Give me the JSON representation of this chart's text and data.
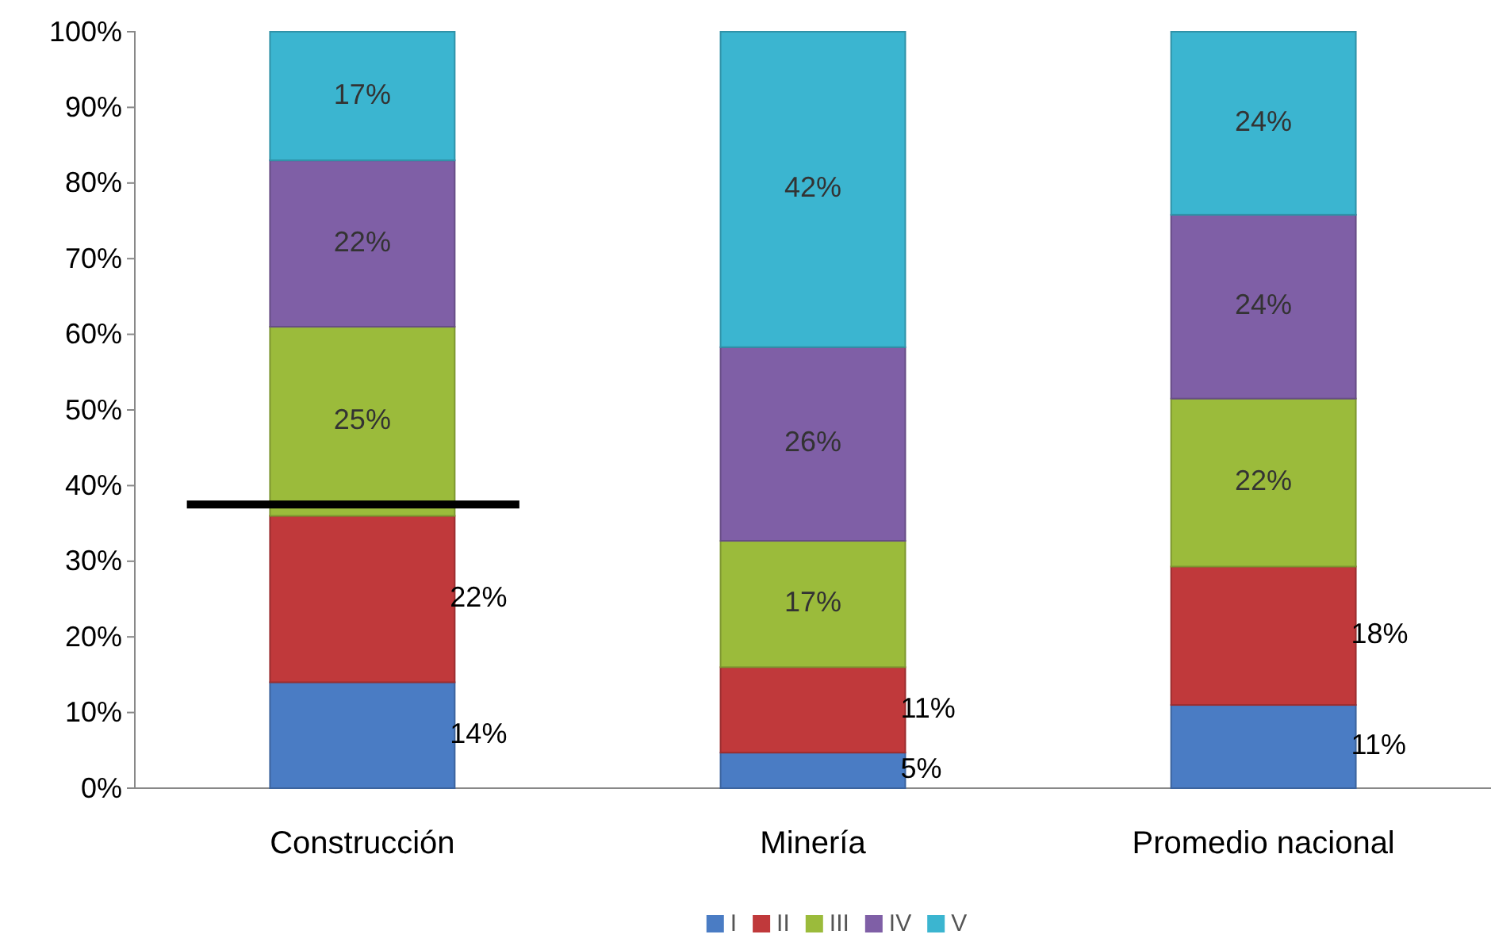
{
  "chart_data": {
    "type": "bar",
    "stacked": true,
    "categories": [
      "Construcción",
      "Minería",
      "Promedio nacional"
    ],
    "series": [
      {
        "name": "I",
        "color": "#4a7cc4",
        "values": [
          14,
          4.7,
          11
        ],
        "value_labels": [
          "14%",
          "5%",
          "11%"
        ]
      },
      {
        "name": "II",
        "color": "#c0393b",
        "values": [
          22,
          11.3,
          18.3
        ],
        "value_labels": [
          "22%",
          "11%",
          "18%"
        ]
      },
      {
        "name": "III",
        "color": "#9bbb3b",
        "values": [
          25,
          16.7,
          22.2
        ],
        "value_labels": [
          "25%",
          "17%",
          "22%"
        ]
      },
      {
        "name": "IV",
        "color": "#7f5fa6",
        "values": [
          22,
          25.6,
          24.3
        ],
        "value_labels": [
          "22%",
          "26%",
          "24%"
        ]
      },
      {
        "name": "V",
        "color": "#3bb5d0",
        "values": [
          17,
          41.7,
          24.2
        ],
        "value_labels": [
          "17%",
          "42%",
          "24%"
        ]
      }
    ],
    "ylim": [
      0,
      100
    ],
    "yticks": [
      {
        "value": 0,
        "label": "0%"
      },
      {
        "value": 10,
        "label": "10%"
      },
      {
        "value": 20,
        "label": "20%"
      },
      {
        "value": 30,
        "label": "30%"
      },
      {
        "value": 40,
        "label": "40%"
      },
      {
        "value": 50,
        "label": "50%"
      },
      {
        "value": 60,
        "label": "60%"
      },
      {
        "value": 70,
        "label": "70%"
      },
      {
        "value": 80,
        "label": "80%"
      },
      {
        "value": 90,
        "label": "90%"
      },
      {
        "value": 100,
        "label": "100%"
      }
    ],
    "ref_lines": [
      {
        "axis": "y",
        "value": 37.5,
        "color": "#000000"
      }
    ],
    "grid": false,
    "legend": "bottom"
  }
}
